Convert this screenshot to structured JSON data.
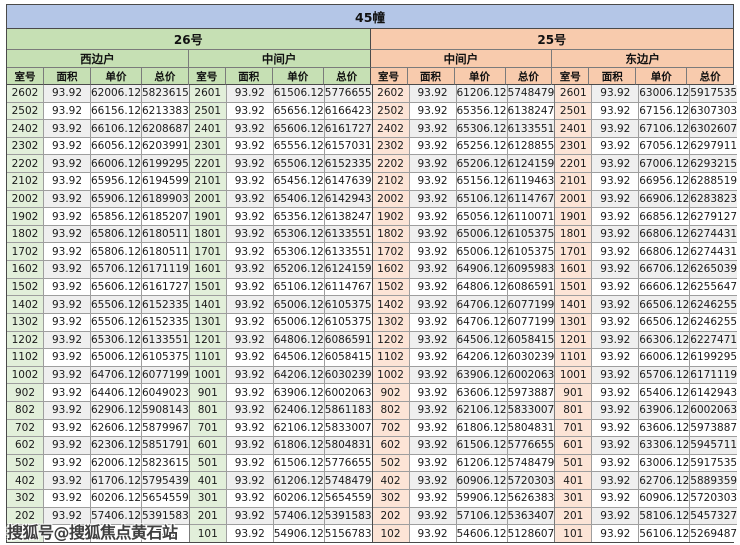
{
  "title": "45幢",
  "watermark": {
    "text": "搜狐号@搜狐焦点黄石站"
  },
  "colors": {
    "title_bg": "#b4c6e7",
    "green_header": "#c6e0b4",
    "green_cell": "#e2efda",
    "peach_header": "#f8cbad",
    "peach_cell": "#fce4d6",
    "stripe": "#efefef",
    "grid_line": "#9e9e9e",
    "grid_dark": "#4a4a4a"
  },
  "table": {
    "column_headers": [
      "室号",
      "面积",
      "单价",
      "总价"
    ],
    "buildings": [
      {
        "name": "26号",
        "theme": "green",
        "units": [
          {
            "name": "西边户",
            "rows": [
              [
                "2602",
                "93.92",
                "62006.12",
                "5823615"
              ],
              [
                "2502",
                "93.92",
                "66156.12",
                "6213383"
              ],
              [
                "2402",
                "93.92",
                "66106.12",
                "6208687"
              ],
              [
                "2302",
                "93.92",
                "66056.12",
                "6203991"
              ],
              [
                "2202",
                "93.92",
                "66006.12",
                "6199295"
              ],
              [
                "2102",
                "93.92",
                "65956.12",
                "6194599"
              ],
              [
                "2002",
                "93.92",
                "65906.12",
                "6189903"
              ],
              [
                "1902",
                "93.92",
                "65856.12",
                "6185207"
              ],
              [
                "1802",
                "93.92",
                "65806.12",
                "6180511"
              ],
              [
                "1702",
                "93.92",
                "65806.12",
                "6180511"
              ],
              [
                "1602",
                "93.92",
                "65706.12",
                "6171119"
              ],
              [
                "1502",
                "93.92",
                "65606.12",
                "6161727"
              ],
              [
                "1402",
                "93.92",
                "65506.12",
                "6152335"
              ],
              [
                "1302",
                "93.92",
                "65506.12",
                "6152335"
              ],
              [
                "1202",
                "93.92",
                "65306.12",
                "6133551"
              ],
              [
                "1102",
                "93.92",
                "65006.12",
                "6105375"
              ],
              [
                "1002",
                "93.92",
                "64706.12",
                "6077199"
              ],
              [
                "902",
                "93.92",
                "64406.12",
                "6049023"
              ],
              [
                "802",
                "93.92",
                "62906.12",
                "5908143"
              ],
              [
                "702",
                "93.92",
                "62606.12",
                "5879967"
              ],
              [
                "602",
                "93.92",
                "62306.12",
                "5851791"
              ],
              [
                "502",
                "93.92",
                "62006.12",
                "5823615"
              ],
              [
                "402",
                "93.92",
                "61706.12",
                "5795439"
              ],
              [
                "302",
                "93.92",
                "60206.12",
                "5654559"
              ],
              [
                "202",
                "93.92",
                "57406.12",
                "5391583"
              ],
              [
                "",
                "",
                "",
                "743"
              ]
            ]
          },
          {
            "name": "中间户",
            "rows": [
              [
                "2601",
                "93.92",
                "61506.12",
                "5776655"
              ],
              [
                "2501",
                "93.92",
                "65656.12",
                "6166423"
              ],
              [
                "2401",
                "93.92",
                "65606.12",
                "6161727"
              ],
              [
                "2301",
                "93.92",
                "65556.12",
                "6157031"
              ],
              [
                "2201",
                "93.92",
                "65506.12",
                "6152335"
              ],
              [
                "2101",
                "93.92",
                "65456.12",
                "6147639"
              ],
              [
                "2001",
                "93.92",
                "65406.12",
                "6142943"
              ],
              [
                "1901",
                "93.92",
                "65356.12",
                "6138247"
              ],
              [
                "1801",
                "93.92",
                "65306.12",
                "6133551"
              ],
              [
                "1701",
                "93.92",
                "65306.12",
                "6133551"
              ],
              [
                "1601",
                "93.92",
                "65206.12",
                "6124159"
              ],
              [
                "1501",
                "93.92",
                "65106.12",
                "6114767"
              ],
              [
                "1401",
                "93.92",
                "65006.12",
                "6105375"
              ],
              [
                "1301",
                "93.92",
                "65006.12",
                "6105375"
              ],
              [
                "1201",
                "93.92",
                "64806.12",
                "6086591"
              ],
              [
                "1101",
                "93.92",
                "64506.12",
                "6058415"
              ],
              [
                "1001",
                "93.92",
                "64206.12",
                "6030239"
              ],
              [
                "901",
                "93.92",
                "63906.12",
                "6002063"
              ],
              [
                "801",
                "93.92",
                "62406.12",
                "5861183"
              ],
              [
                "701",
                "93.92",
                "62106.12",
                "5833007"
              ],
              [
                "601",
                "93.92",
                "61806.12",
                "5804831"
              ],
              [
                "501",
                "93.92",
                "61506.12",
                "5776655"
              ],
              [
                "401",
                "93.92",
                "61206.12",
                "5748479"
              ],
              [
                "301",
                "93.92",
                "60206.12",
                "5654559"
              ],
              [
                "201",
                "93.92",
                "57406.12",
                "5391583"
              ],
              [
                "101",
                "93.92",
                "54906.12",
                "5156783"
              ]
            ]
          }
        ]
      },
      {
        "name": "25号",
        "theme": "peach",
        "units": [
          {
            "name": "中间户",
            "rows": [
              [
                "2602",
                "93.92",
                "61206.12",
                "5748479"
              ],
              [
                "2502",
                "93.92",
                "65356.12",
                "6138247"
              ],
              [
                "2402",
                "93.92",
                "65306.12",
                "6133551"
              ],
              [
                "2302",
                "93.92",
                "65256.12",
                "6128855"
              ],
              [
                "2202",
                "93.92",
                "65206.12",
                "6124159"
              ],
              [
                "2102",
                "93.92",
                "65156.12",
                "6119463"
              ],
              [
                "2002",
                "93.92",
                "65106.12",
                "6114767"
              ],
              [
                "1902",
                "93.92",
                "65056.12",
                "6110071"
              ],
              [
                "1802",
                "93.92",
                "65006.12",
                "6105375"
              ],
              [
                "1702",
                "93.92",
                "65006.12",
                "6105375"
              ],
              [
                "1602",
                "93.92",
                "64906.12",
                "6095983"
              ],
              [
                "1502",
                "93.92",
                "64806.12",
                "6086591"
              ],
              [
                "1402",
                "93.92",
                "64706.12",
                "6077199"
              ],
              [
                "1302",
                "93.92",
                "64706.12",
                "6077199"
              ],
              [
                "1202",
                "93.92",
                "64506.12",
                "6058415"
              ],
              [
                "1102",
                "93.92",
                "64206.12",
                "6030239"
              ],
              [
                "1002",
                "93.92",
                "63906.12",
                "6002063"
              ],
              [
                "902",
                "93.92",
                "63606.12",
                "5973887"
              ],
              [
                "802",
                "93.92",
                "62106.12",
                "5833007"
              ],
              [
                "702",
                "93.92",
                "61806.12",
                "5804831"
              ],
              [
                "602",
                "93.92",
                "61506.12",
                "5776655"
              ],
              [
                "502",
                "93.92",
                "61206.12",
                "5748479"
              ],
              [
                "402",
                "93.92",
                "60906.12",
                "5720303"
              ],
              [
                "302",
                "93.92",
                "59906.12",
                "5626383"
              ],
              [
                "202",
                "93.92",
                "57106.12",
                "5363407"
              ],
              [
                "102",
                "93.92",
                "54606.12",
                "5128607"
              ]
            ]
          },
          {
            "name": "东边户",
            "rows": [
              [
                "2601",
                "93.92",
                "63006.12",
                "5917535"
              ],
              [
                "2501",
                "93.92",
                "67156.12",
                "6307303"
              ],
              [
                "2401",
                "93.92",
                "67106.12",
                "6302607"
              ],
              [
                "2301",
                "93.92",
                "67056.12",
                "6297911"
              ],
              [
                "2201",
                "93.92",
                "67006.12",
                "6293215"
              ],
              [
                "2101",
                "93.92",
                "66956.12",
                "6288519"
              ],
              [
                "2001",
                "93.92",
                "66906.12",
                "6283823"
              ],
              [
                "1901",
                "93.92",
                "66856.12",
                "6279127"
              ],
              [
                "1801",
                "93.92",
                "66806.12",
                "6274431"
              ],
              [
                "1701",
                "93.92",
                "66806.12",
                "6274431"
              ],
              [
                "1601",
                "93.92",
                "66706.12",
                "6265039"
              ],
              [
                "1501",
                "93.92",
                "66606.12",
                "6255647"
              ],
              [
                "1401",
                "93.92",
                "66506.12",
                "6246255"
              ],
              [
                "1301",
                "93.92",
                "66506.12",
                "6246255"
              ],
              [
                "1201",
                "93.92",
                "66306.12",
                "6227471"
              ],
              [
                "1101",
                "93.92",
                "66006.12",
                "6199295"
              ],
              [
                "1001",
                "93.92",
                "65706.12",
                "6171119"
              ],
              [
                "901",
                "93.92",
                "65406.12",
                "6142943"
              ],
              [
                "801",
                "93.92",
                "63906.12",
                "6002063"
              ],
              [
                "701",
                "93.92",
                "63606.12",
                "5973887"
              ],
              [
                "601",
                "93.92",
                "63306.12",
                "5945711"
              ],
              [
                "501",
                "93.92",
                "63006.12",
                "5917535"
              ],
              [
                "401",
                "93.92",
                "62706.12",
                "5889359"
              ],
              [
                "301",
                "93.92",
                "60906.12",
                "5720303"
              ],
              [
                "201",
                "93.92",
                "58106.12",
                "5457327"
              ],
              [
                "101",
                "93.92",
                "56106.12",
                "5269487"
              ]
            ]
          }
        ]
      }
    ]
  }
}
